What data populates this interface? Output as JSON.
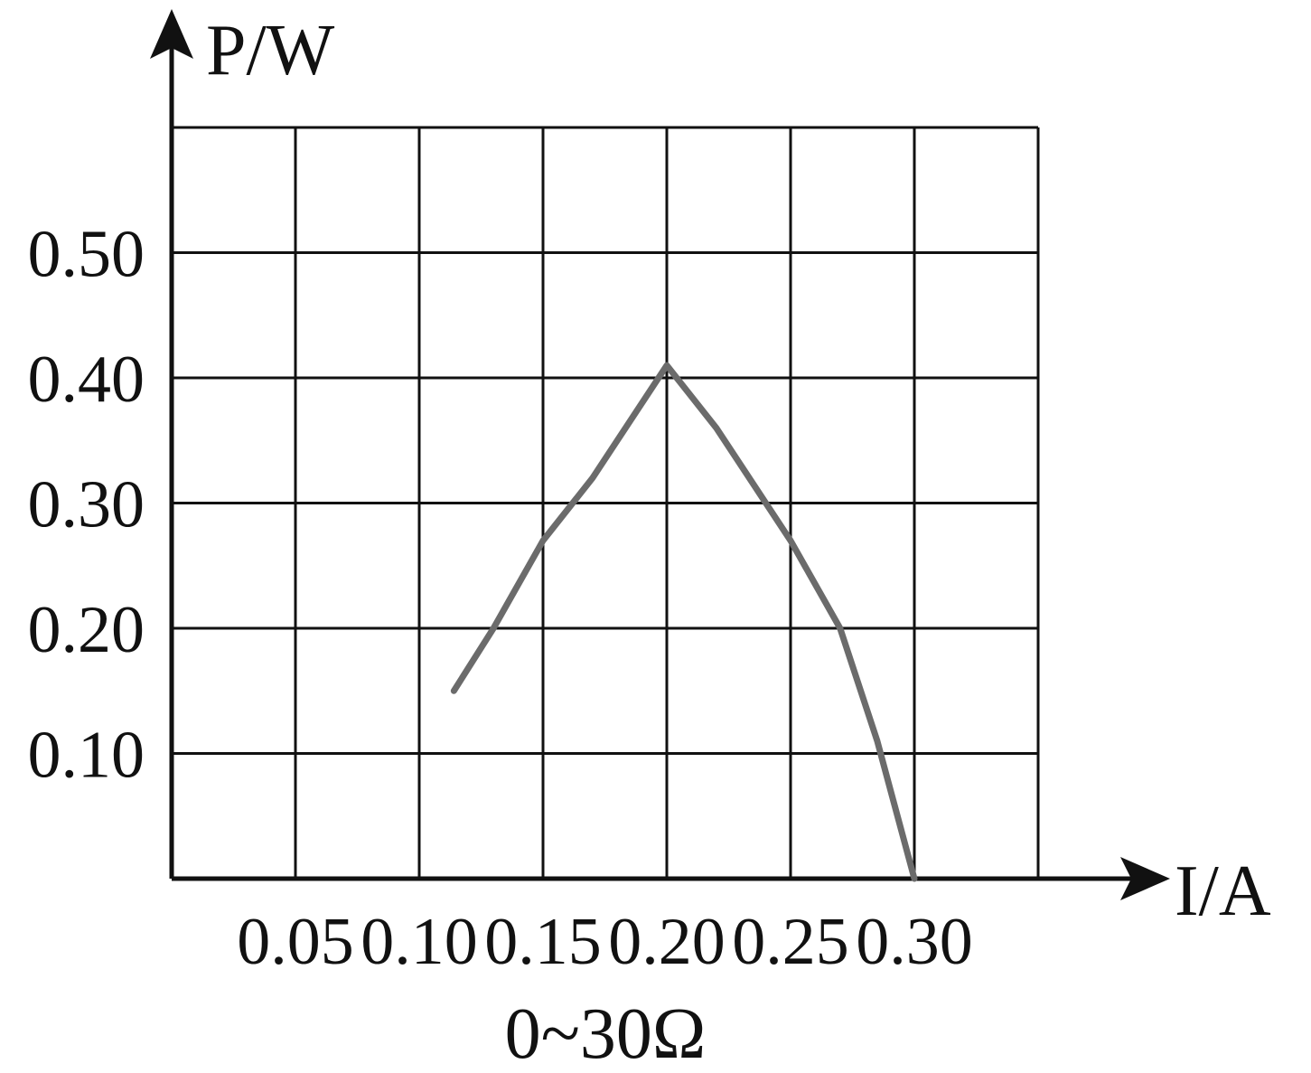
{
  "chart_data": {
    "type": "line",
    "y_label": "P/W",
    "x_label": "I/A",
    "annotation": "0~30Ω",
    "xlim": [
      0,
      0.35
    ],
    "ylim": [
      0,
      0.6
    ],
    "xticks": [
      0.05,
      {
        "value": 0.1,
        "label": "0.10"
      },
      0.15,
      {
        "value": 0.2,
        "label": "0.20"
      },
      0.25,
      {
        "value": 0.3,
        "label": "0.30"
      }
    ],
    "yticks": [
      {
        "value": 0.1,
        "label": "0.10"
      },
      {
        "value": 0.2,
        "label": "0.20"
      },
      {
        "value": 0.3,
        "label": "0.30"
      },
      {
        "value": 0.4,
        "label": "0.40"
      },
      {
        "value": 0.5,
        "label": "0.50"
      }
    ],
    "grid": true,
    "series": [
      {
        "color": "#6b6b6b",
        "x": [
          0.114,
          0.13,
          0.15,
          0.17,
          0.2,
          0.22,
          0.25,
          0.27,
          0.285,
          0.3
        ],
        "values": [
          0.15,
          0.2,
          0.27,
          0.32,
          0.41,
          0.36,
          0.27,
          0.2,
          0.11,
          0
        ]
      }
    ]
  }
}
